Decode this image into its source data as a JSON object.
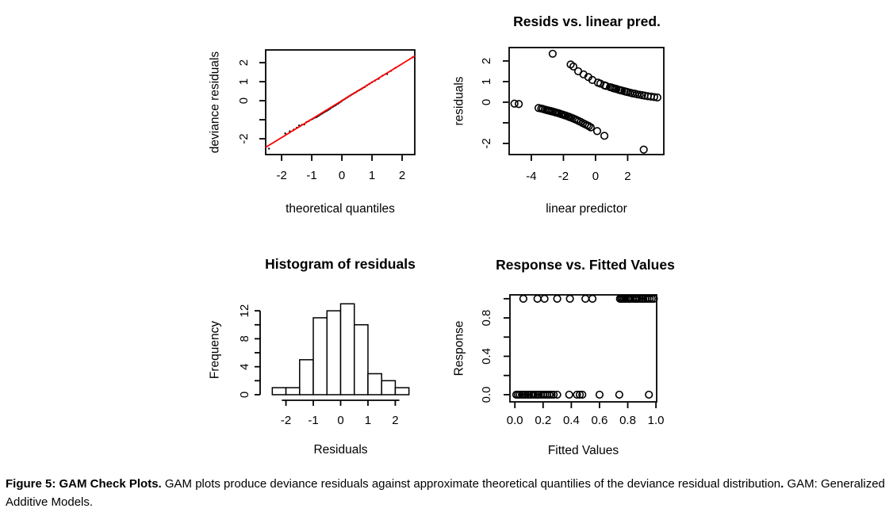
{
  "colors": {
    "axis": "#000000",
    "point": "#000000",
    "ref_line": "#ff0000",
    "bar_fill": "#ffffff",
    "background": "#ffffff"
  },
  "caption": {
    "bold_lead": "Figure 5: GAM Check Plots.",
    "body": " GAM plots produce deviance residuals against approximate theoretical quantilies of the deviance residual distribution",
    "bold_period": ".",
    "tail": " GAM: Generalized Additive Models."
  },
  "chart_data": [
    {
      "id": "qq-plot",
      "type": "scatter",
      "title": "",
      "xlabel": "theoretical quantiles",
      "ylabel": "deviance residuals",
      "xlim": [
        -2.53,
        2.42
      ],
      "ylim": [
        -2.83,
        2.67
      ],
      "xticks": [
        -2,
        -1,
        0,
        1,
        2
      ],
      "xtick_labels": [
        "-2",
        "-1",
        "0",
        "1",
        "2"
      ],
      "yticks": [
        -2,
        -1,
        0,
        1,
        2
      ],
      "ytick_labels": [
        "-2",
        "",
        "0",
        "1",
        "2"
      ],
      "grid": false,
      "frame": true,
      "point_style": "dot",
      "ref_line": {
        "x1": -2.53,
        "y1": -2.45,
        "x2": 2.42,
        "y2": 2.35
      },
      "points": [
        [
          -2.42,
          -2.52
        ],
        [
          -1.88,
          -1.72
        ],
        [
          -1.73,
          -1.61
        ],
        [
          -1.6,
          -1.52
        ],
        [
          -1.5,
          -1.42
        ],
        [
          -1.42,
          -1.3
        ],
        [
          -1.33,
          -1.27
        ],
        [
          -1.25,
          -1.25
        ],
        [
          -1.17,
          -1.12
        ],
        [
          -1.1,
          -1.07
        ],
        [
          -1.03,
          -1.0
        ],
        [
          -0.97,
          -0.96
        ],
        [
          -0.91,
          -0.9
        ],
        [
          -0.85,
          -0.87
        ],
        [
          -0.8,
          -0.82
        ],
        [
          -0.75,
          -0.77
        ],
        [
          -0.7,
          -0.72
        ],
        [
          -0.65,
          -0.67
        ],
        [
          -0.6,
          -0.62
        ],
        [
          -0.55,
          -0.57
        ],
        [
          -0.5,
          -0.53
        ],
        [
          -0.45,
          -0.48
        ],
        [
          -0.4,
          -0.43
        ],
        [
          -0.36,
          -0.38
        ],
        [
          -0.31,
          -0.33
        ],
        [
          -0.27,
          -0.29
        ],
        [
          -0.22,
          -0.25
        ],
        [
          -0.18,
          -0.2
        ],
        [
          -0.13,
          -0.16
        ],
        [
          -0.09,
          -0.11
        ],
        [
          -0.04,
          -0.06
        ],
        [
          0,
          -0.01
        ],
        [
          0.04,
          0.04
        ],
        [
          0.09,
          0.08
        ],
        [
          0.13,
          0.13
        ],
        [
          0.18,
          0.17
        ],
        [
          0.22,
          0.22
        ],
        [
          0.27,
          0.26
        ],
        [
          0.31,
          0.31
        ],
        [
          0.36,
          0.35
        ],
        [
          0.41,
          0.4
        ],
        [
          0.46,
          0.44
        ],
        [
          0.51,
          0.5
        ],
        [
          0.57,
          0.55
        ],
        [
          0.63,
          0.6
        ],
        [
          0.69,
          0.66
        ],
        [
          0.76,
          0.72
        ],
        [
          0.83,
          0.8
        ],
        [
          0.91,
          0.88
        ],
        [
          1.0,
          0.97
        ],
        [
          1.1,
          1.06
        ],
        [
          1.22,
          1.15
        ],
        [
          1.35,
          1.32
        ],
        [
          1.5,
          1.4
        ],
        [
          1.63,
          1.57
        ],
        [
          1.78,
          1.73
        ],
        [
          2.35,
          2.28
        ]
      ]
    },
    {
      "id": "resids-vs-linear-pred",
      "type": "scatter",
      "title": "Resids vs. linear pred.",
      "xlabel": "linear predictor",
      "ylabel": "residuals",
      "xlim": [
        -5.38,
        4.25
      ],
      "ylim": [
        -2.54,
        2.65
      ],
      "xticks": [
        -4,
        -2,
        0,
        2
      ],
      "xtick_labels": [
        "-4",
        "-2",
        "0",
        "2"
      ],
      "yticks": [
        -2,
        -1,
        0,
        1,
        2
      ],
      "ytick_labels": [
        "-2",
        "",
        "0",
        "1",
        "2"
      ],
      "grid": false,
      "frame": true,
      "point_style": "circle",
      "points": [
        [
          -2.67,
          2.35
        ],
        [
          -1.55,
          1.83
        ],
        [
          -1.38,
          1.73
        ],
        [
          -1.08,
          1.5
        ],
        [
          -0.75,
          1.35
        ],
        [
          -0.45,
          1.22
        ],
        [
          -0.2,
          1.08
        ],
        [
          0.15,
          0.95
        ],
        [
          0.3,
          0.9
        ],
        [
          0.55,
          0.82
        ],
        [
          0.65,
          0.79
        ],
        [
          0.9,
          0.73
        ],
        [
          1.0,
          0.71
        ],
        [
          1.1,
          0.68
        ],
        [
          1.2,
          0.66
        ],
        [
          1.3,
          0.64
        ],
        [
          1.45,
          0.6
        ],
        [
          1.55,
          0.58
        ],
        [
          1.65,
          0.56
        ],
        [
          1.8,
          0.53
        ],
        [
          1.9,
          0.51
        ],
        [
          2.0,
          0.49
        ],
        [
          2.15,
          0.46
        ],
        [
          2.3,
          0.43
        ],
        [
          2.45,
          0.41
        ],
        [
          2.6,
          0.38
        ],
        [
          2.75,
          0.36
        ],
        [
          2.9,
          0.34
        ],
        [
          3.05,
          0.32
        ],
        [
          3.25,
          0.29
        ],
        [
          3.45,
          0.27
        ],
        [
          3.65,
          0.25
        ],
        [
          3.85,
          0.23
        ],
        [
          -5.05,
          -0.07
        ],
        [
          -4.78,
          -0.09
        ],
        [
          -3.55,
          -0.28
        ],
        [
          -3.38,
          -0.31
        ],
        [
          -3.28,
          -0.33
        ],
        [
          -3.15,
          -0.36
        ],
        [
          -3.05,
          -0.38
        ],
        [
          -2.95,
          -0.4
        ],
        [
          -2.85,
          -0.42
        ],
        [
          -2.75,
          -0.44
        ],
        [
          -2.65,
          -0.46
        ],
        [
          -2.55,
          -0.48
        ],
        [
          -2.48,
          -0.5
        ],
        [
          -2.38,
          -0.52
        ],
        [
          -2.28,
          -0.54
        ],
        [
          -2.15,
          -0.58
        ],
        [
          -2.05,
          -0.6
        ],
        [
          -1.95,
          -0.63
        ],
        [
          -1.85,
          -0.65
        ],
        [
          -1.72,
          -0.69
        ],
        [
          -1.62,
          -0.72
        ],
        [
          -1.52,
          -0.75
        ],
        [
          -1.42,
          -0.78
        ],
        [
          -1.3,
          -0.82
        ],
        [
          -1.18,
          -0.86
        ],
        [
          -1.05,
          -0.91
        ],
        [
          -0.92,
          -0.96
        ],
        [
          -0.78,
          -1.02
        ],
        [
          -0.65,
          -1.07
        ],
        [
          -0.52,
          -1.12
        ],
        [
          -0.42,
          -1.16
        ],
        [
          -0.3,
          -1.22
        ],
        [
          0.1,
          -1.4
        ],
        [
          0.55,
          -1.63
        ],
        [
          3.0,
          -2.3
        ]
      ]
    },
    {
      "id": "residual-histogram",
      "type": "histogram",
      "title": "Histogram of residuals",
      "xlabel": "Residuals",
      "ylabel": "Frequency",
      "xlim": [
        -2.51,
        2.51
      ],
      "ylim": [
        -0.8,
        13.6
      ],
      "bin_start": -2.5,
      "bin_width": 0.5,
      "counts": [
        1,
        1,
        5,
        11,
        12,
        13,
        10,
        3,
        2,
        1
      ],
      "xticks": [
        -2,
        -1,
        0,
        1,
        2
      ],
      "xtick_labels": [
        "-2",
        "-1",
        "0",
        "1",
        "2"
      ],
      "yticks": [
        0,
        2,
        4,
        6,
        8,
        10,
        12
      ],
      "ytick_labels": [
        "0",
        "",
        "4",
        "",
        "8",
        "",
        "12"
      ],
      "grid": false,
      "frame": false
    },
    {
      "id": "response-vs-fitted",
      "type": "scatter",
      "title": "Response vs. Fitted Values",
      "xlabel": "Fitted Values",
      "ylabel": "Response",
      "xlim": [
        -0.035,
        1.005
      ],
      "ylim": [
        -0.075,
        1.04
      ],
      "xticks": [
        0,
        0.2,
        0.4,
        0.6,
        0.8,
        1
      ],
      "xtick_labels": [
        "0.0",
        "0.2",
        "0.4",
        "0.6",
        "0.8",
        "1.0"
      ],
      "yticks": [
        0,
        0.2,
        0.4,
        0.6,
        0.8,
        1
      ],
      "ytick_labels": [
        "0.0",
        "",
        "0.4",
        "",
        "0.8",
        ""
      ],
      "grid": false,
      "frame": true,
      "point_style": "circle",
      "points": [
        [
          0.06,
          1
        ],
        [
          0.16,
          1
        ],
        [
          0.21,
          1
        ],
        [
          0.3,
          1
        ],
        [
          0.39,
          1
        ],
        [
          0.5,
          1
        ],
        [
          0.55,
          1
        ],
        [
          0.745,
          1
        ],
        [
          0.755,
          1
        ],
        [
          0.765,
          1
        ],
        [
          0.775,
          1
        ],
        [
          0.785,
          1
        ],
        [
          0.8,
          1
        ],
        [
          0.81,
          1
        ],
        [
          0.82,
          1
        ],
        [
          0.835,
          1
        ],
        [
          0.85,
          1
        ],
        [
          0.86,
          1
        ],
        [
          0.87,
          1
        ],
        [
          0.885,
          1
        ],
        [
          0.9,
          1
        ],
        [
          0.91,
          1
        ],
        [
          0.925,
          1
        ],
        [
          0.94,
          1
        ],
        [
          0.955,
          1
        ],
        [
          0.97,
          1
        ],
        [
          0.985,
          1
        ],
        [
          0.01,
          0
        ],
        [
          0.022,
          0
        ],
        [
          0.035,
          0
        ],
        [
          0.05,
          0
        ],
        [
          0.062,
          0
        ],
        [
          0.075,
          0
        ],
        [
          0.09,
          0
        ],
        [
          0.1,
          0
        ],
        [
          0.115,
          0
        ],
        [
          0.13,
          0
        ],
        [
          0.145,
          0
        ],
        [
          0.16,
          0
        ],
        [
          0.17,
          0
        ],
        [
          0.185,
          0
        ],
        [
          0.2,
          0
        ],
        [
          0.215,
          0
        ],
        [
          0.23,
          0
        ],
        [
          0.245,
          0
        ],
        [
          0.26,
          0
        ],
        [
          0.275,
          0
        ],
        [
          0.3,
          0
        ],
        [
          0.385,
          0
        ],
        [
          0.44,
          0
        ],
        [
          0.46,
          0
        ],
        [
          0.478,
          0
        ],
        [
          0.6,
          0
        ],
        [
          0.74,
          0
        ],
        [
          0.95,
          0
        ]
      ]
    }
  ]
}
